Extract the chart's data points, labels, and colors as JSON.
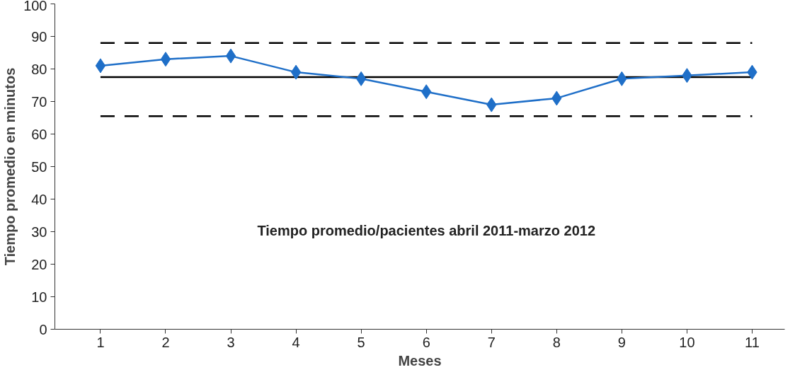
{
  "chart_data": {
    "type": "line",
    "xlabel": "Meses",
    "ylabel": "Tiempo promedio en minutos",
    "categories": [
      "1",
      "2",
      "3",
      "4",
      "5",
      "6",
      "7",
      "8",
      "9",
      "10",
      "11"
    ],
    "series": [
      {
        "color": "#1f6fc8",
        "values": [
          81,
          83,
          84,
          79,
          77,
          73,
          69,
          71,
          77,
          78,
          79
        ]
      }
    ],
    "ylim": [
      0,
      100
    ],
    "yticks": [
      0,
      10,
      20,
      30,
      40,
      50,
      60,
      70,
      80,
      90,
      100
    ],
    "ref_lines": [
      {
        "axis": "y",
        "value": 88,
        "label": null,
        "color": "#000000",
        "line_style": "dashed"
      },
      {
        "axis": "y",
        "value": 77.5,
        "label": null,
        "color": "#000000",
        "line_style": "solid"
      },
      {
        "axis": "y",
        "value": 65.5,
        "label": null,
        "color": "#000000",
        "line_style": "dashed"
      }
    ],
    "annotations": [
      "Tiempo promedio/pacientes abril 2011-marzo 2012"
    ],
    "grid": false,
    "marker": "diamond",
    "line_style": "solid"
  }
}
